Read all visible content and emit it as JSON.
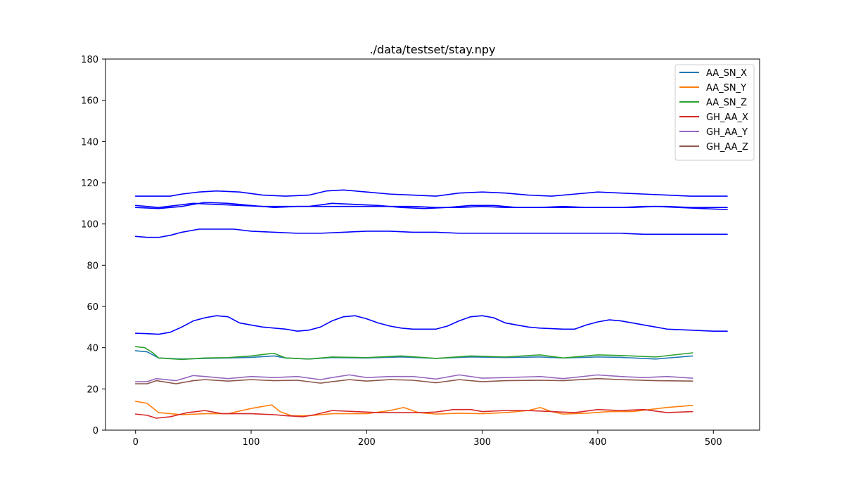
{
  "chart_data": {
    "type": "line",
    "title": "./data/testset/stay.npy",
    "xlabel": "",
    "ylabel": "",
    "xlim": [
      -26,
      540
    ],
    "ylim": [
      0,
      180
    ],
    "xticks": [
      0,
      100,
      200,
      300,
      400,
      500
    ],
    "yticks": [
      0,
      20,
      40,
      60,
      80,
      100,
      120,
      140,
      160,
      180
    ],
    "grid": false,
    "legend_position": "top-right",
    "series": [
      {
        "name": "AA_SN_X",
        "color": "#1f77b4",
        "points": [
          [
            0,
            38.5
          ],
          [
            10,
            38
          ],
          [
            20,
            35
          ],
          [
            40,
            34.5
          ],
          [
            60,
            34.8
          ],
          [
            80,
            35
          ],
          [
            100,
            35.3
          ],
          [
            120,
            36
          ],
          [
            130,
            35
          ],
          [
            150,
            34.5
          ],
          [
            170,
            35.2
          ],
          [
            200,
            35
          ],
          [
            230,
            35.5
          ],
          [
            260,
            34.8
          ],
          [
            290,
            35.5
          ],
          [
            320,
            35.2
          ],
          [
            350,
            35.5
          ],
          [
            370,
            35
          ],
          [
            400,
            35.5
          ],
          [
            420,
            35.3
          ],
          [
            450,
            34.5
          ],
          [
            482,
            36
          ]
        ]
      },
      {
        "name": "AA_SN_Y",
        "color": "#ff7f0e",
        "points": [
          [
            0,
            14
          ],
          [
            10,
            13
          ],
          [
            20,
            8.5
          ],
          [
            40,
            7.5
          ],
          [
            60,
            8
          ],
          [
            80,
            8
          ],
          [
            100,
            10.5
          ],
          [
            115,
            12
          ],
          [
            118,
            12.2
          ],
          [
            125,
            9
          ],
          [
            135,
            7
          ],
          [
            150,
            7
          ],
          [
            170,
            8
          ],
          [
            200,
            8
          ],
          [
            220,
            9.5
          ],
          [
            232,
            11
          ],
          [
            245,
            8.5
          ],
          [
            260,
            7.8
          ],
          [
            280,
            8.2
          ],
          [
            300,
            8
          ],
          [
            320,
            8.5
          ],
          [
            340,
            9.5
          ],
          [
            350,
            11
          ],
          [
            360,
            9
          ],
          [
            370,
            7.8
          ],
          [
            390,
            8.2
          ],
          [
            410,
            9
          ],
          [
            430,
            9
          ],
          [
            460,
            11
          ],
          [
            482,
            12
          ]
        ]
      },
      {
        "name": "AA_SN_Z",
        "color": "#2ca02c",
        "points": [
          [
            0,
            40.5
          ],
          [
            8,
            40
          ],
          [
            15,
            37.5
          ],
          [
            20,
            35
          ],
          [
            40,
            34.3
          ],
          [
            60,
            35
          ],
          [
            80,
            35.2
          ],
          [
            100,
            36
          ],
          [
            115,
            37
          ],
          [
            120,
            37.2
          ],
          [
            130,
            35
          ],
          [
            150,
            34.5
          ],
          [
            170,
            35.5
          ],
          [
            200,
            35.2
          ],
          [
            230,
            36
          ],
          [
            260,
            34.8
          ],
          [
            290,
            36
          ],
          [
            320,
            35.5
          ],
          [
            350,
            36.5
          ],
          [
            370,
            35
          ],
          [
            400,
            36.5
          ],
          [
            420,
            36.2
          ],
          [
            450,
            35.5
          ],
          [
            482,
            37.5
          ]
        ]
      },
      {
        "name": "GH_AA_X",
        "color": "#d62728",
        "points": [
          [
            0,
            7.8
          ],
          [
            10,
            7.2
          ],
          [
            18,
            5.8
          ],
          [
            30,
            6.5
          ],
          [
            45,
            8.5
          ],
          [
            60,
            9.5
          ],
          [
            75,
            8
          ],
          [
            90,
            8
          ],
          [
            100,
            8
          ],
          [
            120,
            7.5
          ],
          [
            130,
            7
          ],
          [
            145,
            6.5
          ],
          [
            155,
            7.5
          ],
          [
            170,
            9.5
          ],
          [
            190,
            9
          ],
          [
            210,
            8.5
          ],
          [
            230,
            8.5
          ],
          [
            250,
            8.5
          ],
          [
            260,
            8.8
          ],
          [
            275,
            10
          ],
          [
            290,
            10
          ],
          [
            300,
            9
          ],
          [
            320,
            9.5
          ],
          [
            340,
            9.5
          ],
          [
            360,
            9
          ],
          [
            380,
            8.5
          ],
          [
            400,
            10
          ],
          [
            420,
            9.5
          ],
          [
            440,
            10
          ],
          [
            460,
            8.5
          ],
          [
            482,
            9
          ]
        ]
      },
      {
        "name": "GH_AA_Y",
        "color": "#9467bd",
        "points": [
          [
            0,
            23.5
          ],
          [
            10,
            23.5
          ],
          [
            18,
            25
          ],
          [
            35,
            24
          ],
          [
            50,
            26.5
          ],
          [
            60,
            26
          ],
          [
            80,
            25
          ],
          [
            100,
            26
          ],
          [
            120,
            25.5
          ],
          [
            140,
            26
          ],
          [
            160,
            24.5
          ],
          [
            170,
            25.5
          ],
          [
            185,
            26.8
          ],
          [
            200,
            25.5
          ],
          [
            220,
            26
          ],
          [
            240,
            26
          ],
          [
            260,
            24.8
          ],
          [
            280,
            26.8
          ],
          [
            300,
            25.2
          ],
          [
            320,
            25.5
          ],
          [
            350,
            26
          ],
          [
            370,
            25
          ],
          [
            400,
            26.8
          ],
          [
            420,
            26
          ],
          [
            440,
            25.5
          ],
          [
            460,
            26
          ],
          [
            482,
            25.2
          ]
        ]
      },
      {
        "name": "GH_AA_Z",
        "color": "#8c564b",
        "points": [
          [
            0,
            22.5
          ],
          [
            10,
            22.5
          ],
          [
            18,
            24
          ],
          [
            35,
            22.5
          ],
          [
            50,
            24
          ],
          [
            60,
            24.5
          ],
          [
            80,
            23.8
          ],
          [
            100,
            24.5
          ],
          [
            120,
            24
          ],
          [
            140,
            24.2
          ],
          [
            160,
            22.8
          ],
          [
            170,
            23.5
          ],
          [
            185,
            24.5
          ],
          [
            200,
            23.8
          ],
          [
            220,
            24.5
          ],
          [
            240,
            24.2
          ],
          [
            260,
            23
          ],
          [
            280,
            24.5
          ],
          [
            300,
            23.5
          ],
          [
            320,
            24
          ],
          [
            350,
            24.2
          ],
          [
            370,
            24
          ],
          [
            400,
            25
          ],
          [
            420,
            24.5
          ],
          [
            450,
            24
          ],
          [
            482,
            23.8
          ]
        ]
      },
      {
        "color": "#0000ff",
        "points": [
          [
            0,
            113.5
          ],
          [
            20,
            113.5
          ],
          [
            30,
            113.5
          ],
          [
            40,
            114.5
          ],
          [
            55,
            115.5
          ],
          [
            70,
            116
          ],
          [
            90,
            115.5
          ],
          [
            110,
            114
          ],
          [
            130,
            113.5
          ],
          [
            150,
            114
          ],
          [
            165,
            116
          ],
          [
            180,
            116.5
          ],
          [
            200,
            115.5
          ],
          [
            220,
            114.5
          ],
          [
            240,
            114
          ],
          [
            260,
            113.5
          ],
          [
            280,
            115
          ],
          [
            300,
            115.5
          ],
          [
            320,
            115
          ],
          [
            340,
            114
          ],
          [
            360,
            113.5
          ],
          [
            380,
            114.5
          ],
          [
            400,
            115.5
          ],
          [
            420,
            115
          ],
          [
            440,
            114.5
          ],
          [
            460,
            114
          ],
          [
            480,
            113.5
          ],
          [
            512,
            113.5
          ]
        ]
      },
      {
        "color": "#0000ff",
        "points": [
          [
            0,
            109
          ],
          [
            20,
            108
          ],
          [
            35,
            109
          ],
          [
            50,
            110
          ],
          [
            70,
            109.5
          ],
          [
            90,
            109
          ],
          [
            110,
            108.5
          ],
          [
            130,
            108.5
          ],
          [
            150,
            108.5
          ],
          [
            170,
            110
          ],
          [
            190,
            109.5
          ],
          [
            210,
            109
          ],
          [
            230,
            108
          ],
          [
            250,
            107.5
          ],
          [
            270,
            108
          ],
          [
            290,
            109
          ],
          [
            310,
            109
          ],
          [
            330,
            108
          ],
          [
            350,
            108
          ],
          [
            370,
            108.5
          ],
          [
            390,
            108
          ],
          [
            410,
            108
          ],
          [
            430,
            108
          ],
          [
            450,
            108.5
          ],
          [
            470,
            108
          ],
          [
            490,
            107.5
          ],
          [
            512,
            107
          ]
        ]
      },
      {
        "color": "#0000ff",
        "points": [
          [
            0,
            108
          ],
          [
            20,
            107.5
          ],
          [
            40,
            108.5
          ],
          [
            60,
            110.5
          ],
          [
            80,
            110
          ],
          [
            100,
            109
          ],
          [
            120,
            108
          ],
          [
            140,
            108.5
          ],
          [
            160,
            108.5
          ],
          [
            180,
            108.5
          ],
          [
            200,
            108.5
          ],
          [
            220,
            108.5
          ],
          [
            240,
            108.5
          ],
          [
            260,
            108
          ],
          [
            280,
            108
          ],
          [
            300,
            108.5
          ],
          [
            320,
            108
          ],
          [
            340,
            108
          ],
          [
            360,
            108
          ],
          [
            380,
            108
          ],
          [
            400,
            108
          ],
          [
            420,
            108
          ],
          [
            440,
            108.5
          ],
          [
            460,
            108.5
          ],
          [
            480,
            108
          ],
          [
            512,
            108
          ]
        ]
      },
      {
        "color": "#0000ff",
        "points": [
          [
            0,
            94
          ],
          [
            10,
            93.5
          ],
          [
            20,
            93.5
          ],
          [
            30,
            94.5
          ],
          [
            40,
            96
          ],
          [
            55,
            97.5
          ],
          [
            70,
            97.5
          ],
          [
            85,
            97.5
          ],
          [
            100,
            96.5
          ],
          [
            120,
            96
          ],
          [
            140,
            95.5
          ],
          [
            160,
            95.5
          ],
          [
            180,
            96
          ],
          [
            200,
            96.5
          ],
          [
            220,
            96.5
          ],
          [
            240,
            96
          ],
          [
            260,
            96
          ],
          [
            280,
            95.5
          ],
          [
            300,
            95.5
          ],
          [
            320,
            95.5
          ],
          [
            340,
            95.5
          ],
          [
            360,
            95.5
          ],
          [
            380,
            95.5
          ],
          [
            400,
            95.5
          ],
          [
            420,
            95.5
          ],
          [
            440,
            95
          ],
          [
            460,
            95
          ],
          [
            480,
            95
          ],
          [
            512,
            95
          ]
        ]
      },
      {
        "color": "#0000ff",
        "points": [
          [
            0,
            47
          ],
          [
            10,
            46.8
          ],
          [
            20,
            46.5
          ],
          [
            30,
            47.5
          ],
          [
            40,
            50
          ],
          [
            50,
            53
          ],
          [
            60,
            54.5
          ],
          [
            70,
            55.5
          ],
          [
            80,
            55
          ],
          [
            90,
            52
          ],
          [
            100,
            51
          ],
          [
            110,
            50
          ],
          [
            120,
            49.5
          ],
          [
            130,
            49
          ],
          [
            140,
            48
          ],
          [
            150,
            48.5
          ],
          [
            160,
            50
          ],
          [
            170,
            53
          ],
          [
            180,
            55
          ],
          [
            190,
            55.5
          ],
          [
            200,
            54
          ],
          [
            210,
            52
          ],
          [
            220,
            50.5
          ],
          [
            230,
            49.5
          ],
          [
            240,
            49
          ],
          [
            260,
            49
          ],
          [
            270,
            50.5
          ],
          [
            280,
            53
          ],
          [
            290,
            55
          ],
          [
            300,
            55.5
          ],
          [
            310,
            54.5
          ],
          [
            320,
            52
          ],
          [
            330,
            51
          ],
          [
            340,
            50
          ],
          [
            350,
            49.5
          ],
          [
            370,
            49
          ],
          [
            380,
            49
          ],
          [
            390,
            51
          ],
          [
            400,
            52.5
          ],
          [
            410,
            53.5
          ],
          [
            420,
            53
          ],
          [
            430,
            52
          ],
          [
            440,
            51
          ],
          [
            450,
            50
          ],
          [
            460,
            49
          ],
          [
            480,
            48.5
          ],
          [
            500,
            48
          ],
          [
            512,
            48
          ]
        ]
      }
    ]
  }
}
